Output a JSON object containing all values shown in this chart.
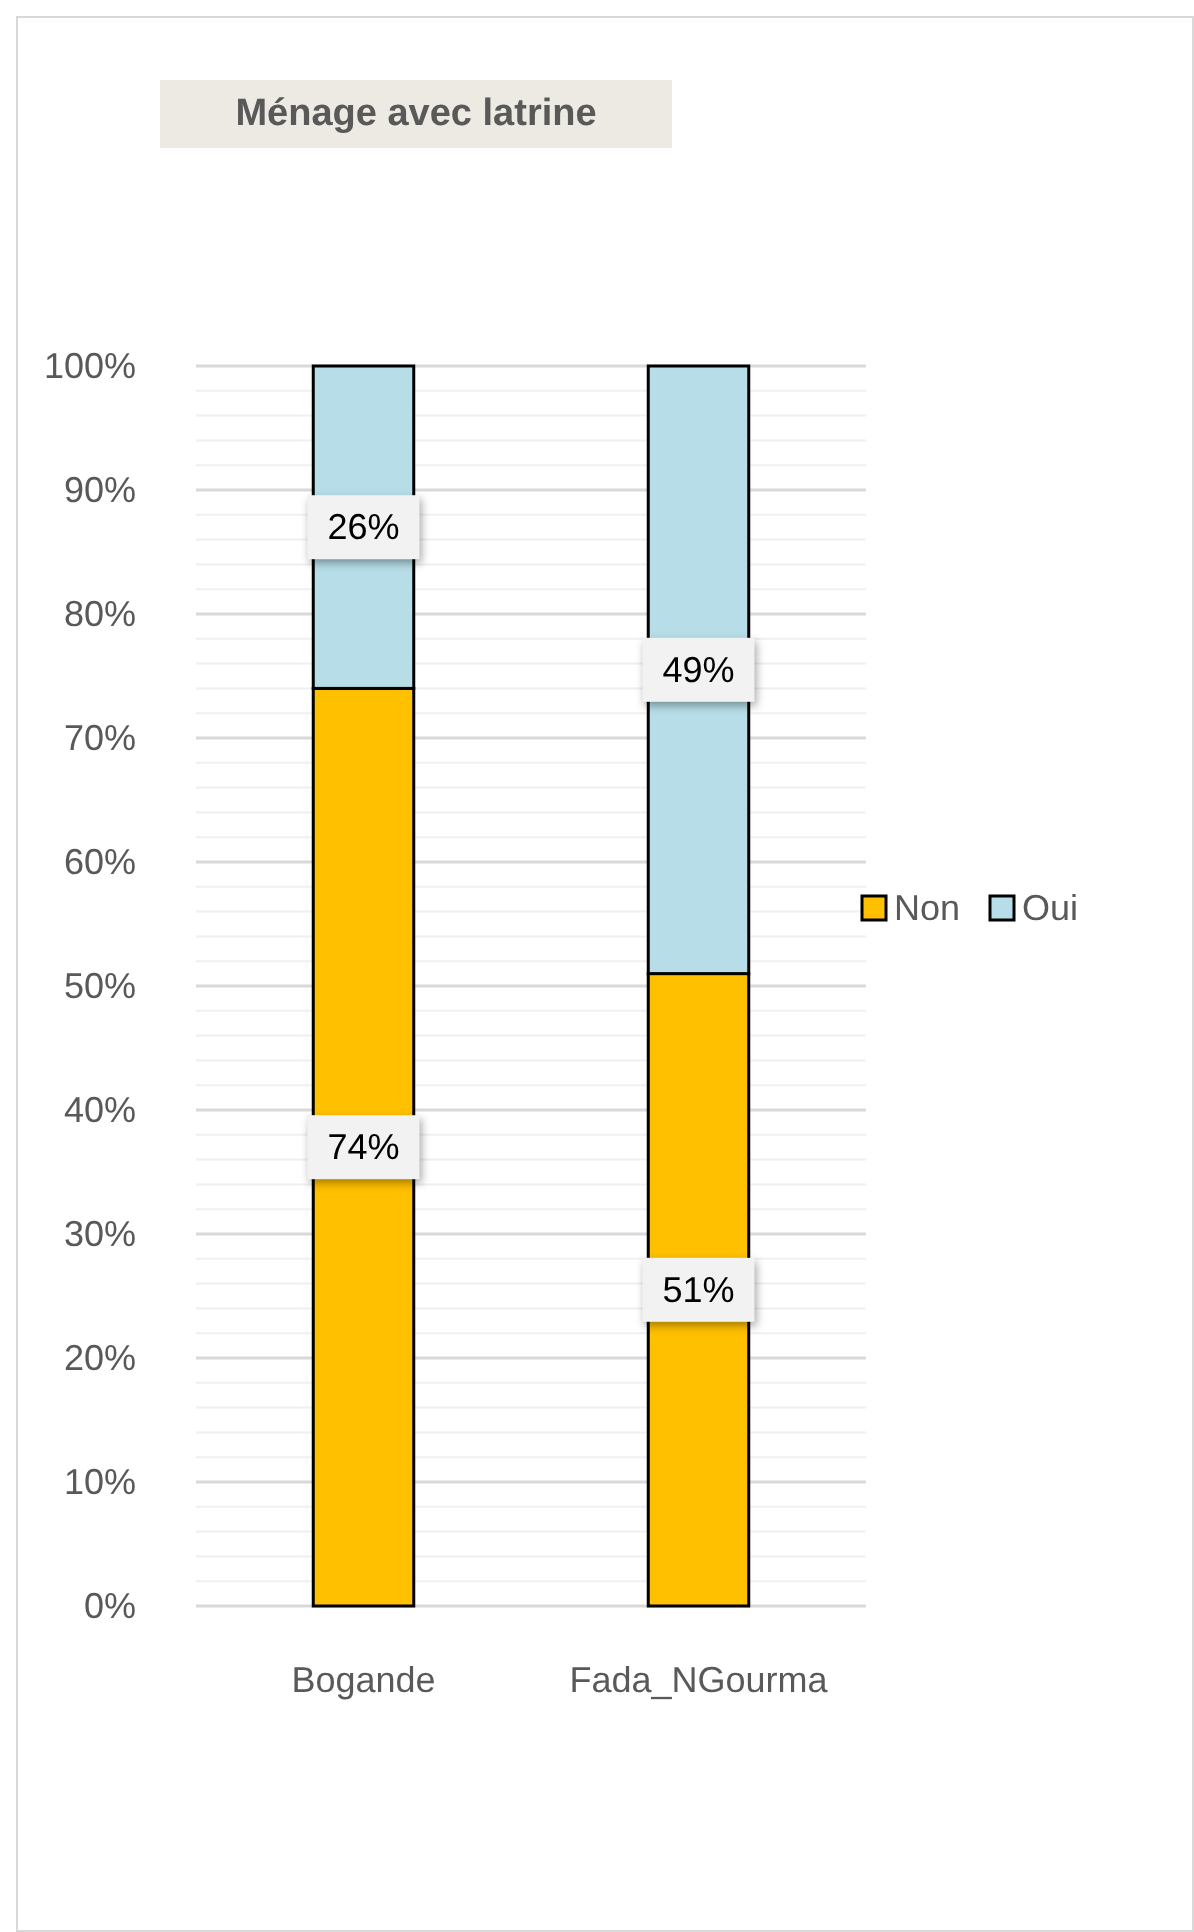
{
  "chart_data": {
    "type": "bar",
    "title": "Ménage avec latrine",
    "categories": [
      "Bogande",
      "Fada_NGourma"
    ],
    "stacked": true,
    "series": [
      {
        "name": "Non",
        "color": "#ffc000",
        "values": [
          74,
          51
        ],
        "value_labels": [
          "74%",
          "51%"
        ]
      },
      {
        "name": "Oui",
        "color": "#b7dee8",
        "values": [
          26,
          49
        ],
        "value_labels": [
          "26%",
          "49%"
        ]
      }
    ],
    "ylim": [
      0,
      100
    ],
    "yticks": [
      {
        "value": 0,
        "label": "0%"
      },
      {
        "value": 2,
        "label": null
      },
      {
        "value": 4,
        "label": null
      },
      {
        "value": 6,
        "label": null
      },
      {
        "value": 8,
        "label": null
      },
      {
        "value": 10,
        "label": "10%"
      },
      {
        "value": 12,
        "label": null
      },
      {
        "value": 14,
        "label": null
      },
      {
        "value": 16,
        "label": null
      },
      {
        "value": 18,
        "label": null
      },
      {
        "value": 20,
        "label": "20%"
      },
      {
        "value": 22,
        "label": null
      },
      {
        "value": 24,
        "label": null
      },
      {
        "value": 26,
        "label": null
      },
      {
        "value": 28,
        "label": null
      },
      {
        "value": 30,
        "label": "30%"
      },
      {
        "value": 32,
        "label": null
      },
      {
        "value": 34,
        "label": null
      },
      {
        "value": 36,
        "label": null
      },
      {
        "value": 38,
        "label": null
      },
      {
        "value": 40,
        "label": "40%"
      },
      {
        "value": 42,
        "label": null
      },
      {
        "value": 44,
        "label": null
      },
      {
        "value": 46,
        "label": null
      },
      {
        "value": 48,
        "label": null
      },
      {
        "value": 50,
        "label": "50%"
      },
      {
        "value": 52,
        "label": null
      },
      {
        "value": 54,
        "label": null
      },
      {
        "value": 56,
        "label": null
      },
      {
        "value": 58,
        "label": null
      },
      {
        "value": 60,
        "label": "60%"
      },
      {
        "value": 62,
        "label": null
      },
      {
        "value": 64,
        "label": null
      },
      {
        "value": 66,
        "label": null
      },
      {
        "value": 68,
        "label": null
      },
      {
        "value": 70,
        "label": "70%"
      },
      {
        "value": 72,
        "label": null
      },
      {
        "value": 74,
        "label": null
      },
      {
        "value": 76,
        "label": null
      },
      {
        "value": 78,
        "label": null
      },
      {
        "value": 80,
        "label": "80%"
      },
      {
        "value": 82,
        "label": null
      },
      {
        "value": 84,
        "label": null
      },
      {
        "value": 86,
        "label": null
      },
      {
        "value": 88,
        "label": null
      },
      {
        "value": 90,
        "label": "90%"
      },
      {
        "value": 92,
        "label": null
      },
      {
        "value": 94,
        "label": null
      },
      {
        "value": 96,
        "label": null
      },
      {
        "value": 98,
        "label": null
      },
      {
        "value": 100,
        "label": "100%"
      }
    ],
    "grid": "y",
    "legend": "right"
  }
}
